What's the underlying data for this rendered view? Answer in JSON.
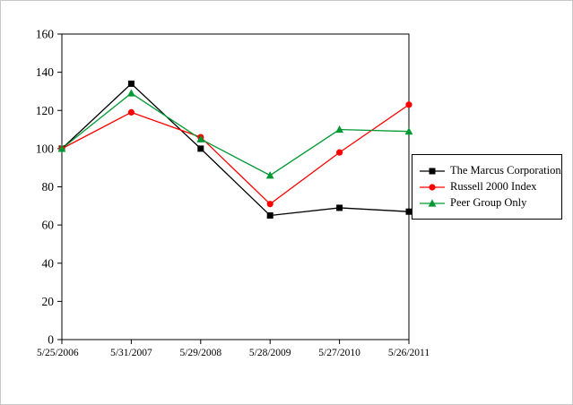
{
  "chart_data": {
    "type": "line",
    "title": "",
    "xlabel": "",
    "ylabel": "",
    "categories": [
      "5/25/2006",
      "5/31/2007",
      "5/29/2008",
      "5/28/2009",
      "5/27/2010",
      "5/26/2011"
    ],
    "ylim": [
      0,
      160
    ],
    "ytick_step": 20,
    "grid": false,
    "legend_position": "right",
    "plot_border_color": "#000000",
    "background_color": "#ffffff",
    "series": [
      {
        "name": "The Marcus Corporation",
        "color": "#000000",
        "marker": "square",
        "values": [
          100,
          134,
          100,
          65,
          69,
          67
        ]
      },
      {
        "name": "Russell 2000 Index",
        "color": "#ff0000",
        "marker": "circle",
        "values": [
          100,
          119,
          106,
          71,
          98,
          123
        ]
      },
      {
        "name": "Peer Group Only",
        "color": "#009933",
        "marker": "triangle",
        "values": [
          100,
          129,
          105,
          86,
          110,
          109
        ]
      }
    ]
  }
}
